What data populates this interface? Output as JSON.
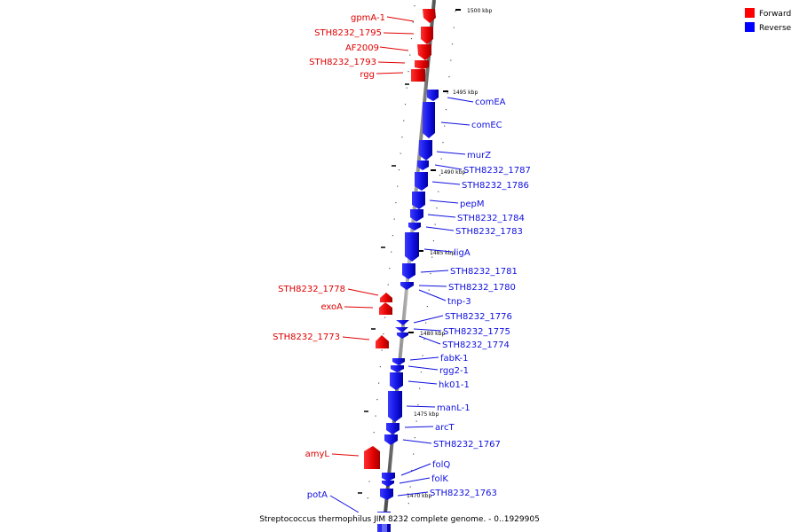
{
  "title": "Streptococcus thermophilus JIM 8232 complete genome. - 0..1929905",
  "legend": [
    {
      "label": "Forward",
      "color": "#ff0000"
    },
    {
      "label": "Reverse",
      "color": "#0000ff"
    }
  ],
  "colors": {
    "forward": "#e00000",
    "reverse": "#1010e0",
    "axis": "#777777"
  },
  "ticks": [
    "1500 kbp",
    "1495 kbp",
    "1490 kbp",
    "1485 kbp",
    "1480 kbp",
    "1475 kbp",
    "1470 kbp"
  ],
  "forward_genes": [
    "gpmA-1",
    "STH8232_1795",
    "AF2009",
    "STH8232_1793",
    "rgg",
    "STH8232_1778",
    "exoA",
    "STH8232_1773",
    "amyL"
  ],
  "reverse_genes": [
    "comEA",
    "comEC",
    "murZ",
    "STH8232_1787",
    "STH8232_1786",
    "pepM",
    "STH8232_1784",
    "STH8232_1783",
    "ligA",
    "STH8232_1781",
    "STH8232_1780",
    "tnp-3",
    "STH8232_1776",
    "STH8232_1775",
    "STH8232_1774",
    "fabK-1",
    "rgg2-1",
    "hk01-1",
    "manL-1",
    "arcT",
    "STH8232_1767",
    "folQ",
    "folK",
    "STH8232_1763",
    "potA"
  ]
}
